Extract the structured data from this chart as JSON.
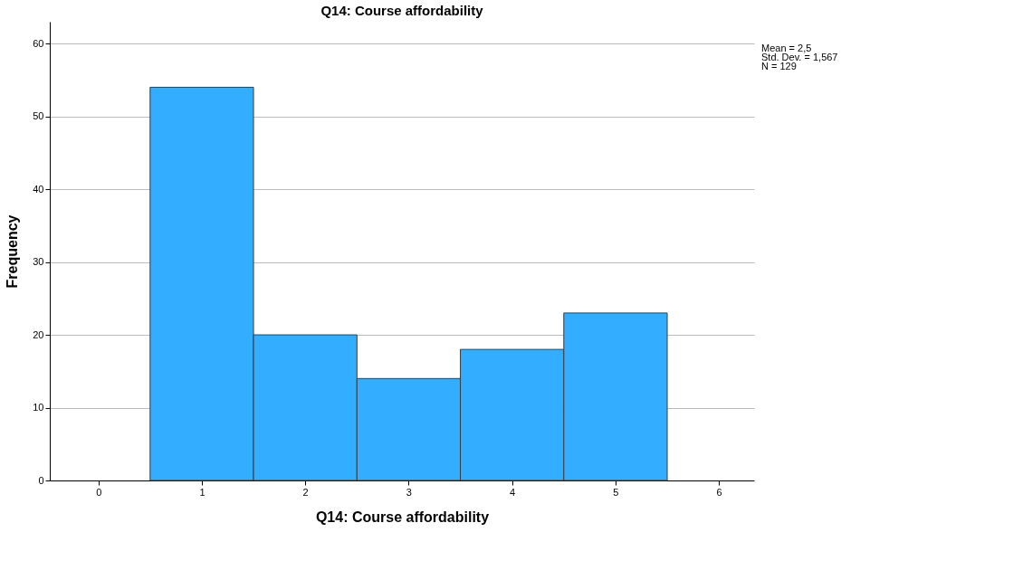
{
  "chart_data": {
    "type": "histogram",
    "title": "Q14: Course affordability",
    "xlabel": "Q14: Course affordability",
    "ylabel": "Frequency",
    "bins": [
      0.5,
      1.5,
      2.5,
      3.5,
      4.5,
      5.5
    ],
    "values": [
      54,
      20,
      14,
      18,
      23
    ],
    "color": "#33adff",
    "xlim": [
      -0.47,
      6.34
    ],
    "xticks": [
      0,
      1,
      2,
      3,
      4,
      5,
      6
    ],
    "ylim": [
      0,
      63
    ],
    "yticks": [
      0,
      10,
      20,
      30,
      40,
      50,
      60
    ],
    "grid": "y",
    "annotations": [
      "Mean = 2,5",
      "Std. Dev. = 1,567",
      "N = 129"
    ]
  }
}
